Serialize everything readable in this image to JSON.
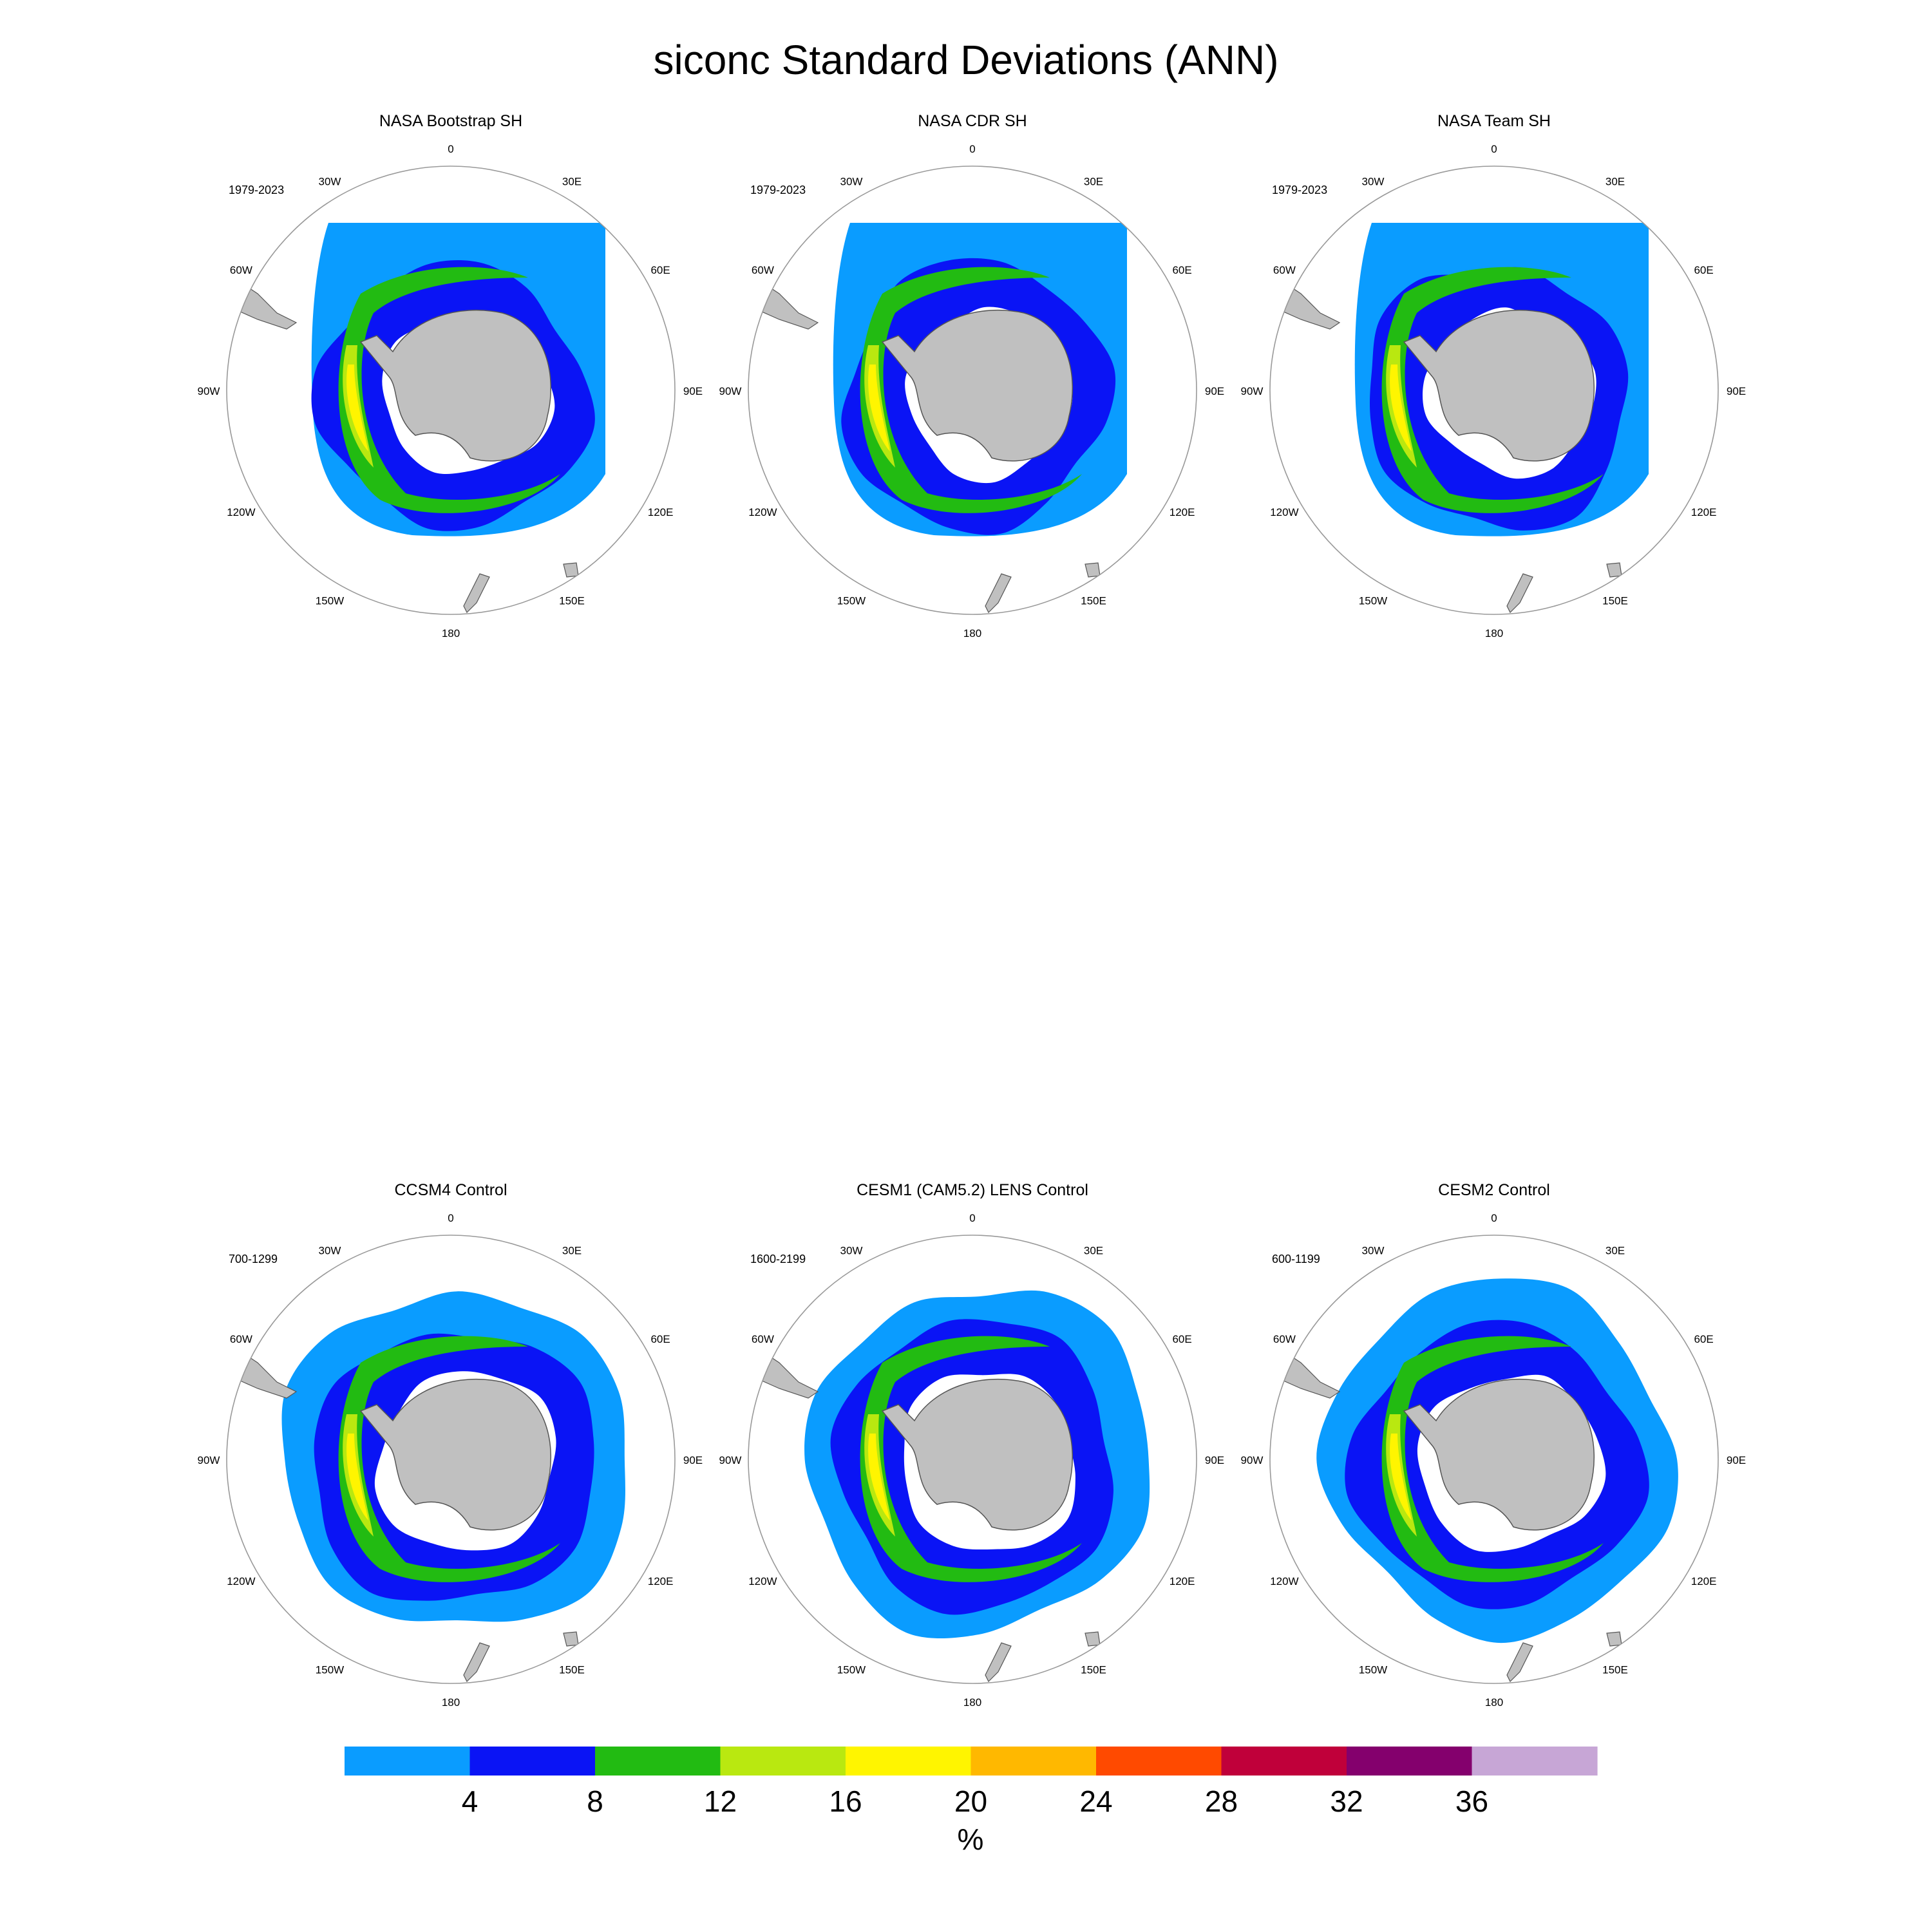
{
  "title": "siconc Standard Deviations (ANN)",
  "panels": [
    {
      "name": "NASA Bootstrap SH",
      "years": "1979-2023",
      "kind": "obs"
    },
    {
      "name": "NASA CDR SH",
      "years": "1979-2023",
      "kind": "obs"
    },
    {
      "name": "NASA Team SH",
      "years": "1979-2023",
      "kind": "obs"
    },
    {
      "name": "CCSM4 Control",
      "years": "700-1299",
      "kind": "model"
    },
    {
      "name": "CESM1 (CAM5.2) LENS Control",
      "years": "1600-2199",
      "kind": "model"
    },
    {
      "name": "CESM2 Control",
      "years": "600-1199",
      "kind": "model"
    }
  ],
  "longitude_labels": [
    "0",
    "30E",
    "60E",
    "90E",
    "120E",
    "150E",
    "180",
    "150W",
    "120W",
    "90W",
    "60W",
    "30W"
  ],
  "colorbar": {
    "unit": "%",
    "ticks": [
      "4",
      "8",
      "12",
      "16",
      "20",
      "24",
      "28",
      "32",
      "36"
    ],
    "colors": [
      "#0a9cff",
      "#0a14f5",
      "#22bb12",
      "#b9e810",
      "#fff500",
      "#ffb800",
      "#ff4a00",
      "#c0003a",
      "#84006d",
      "#c7a6d6"
    ]
  },
  "colors": {
    "land": "#c0c0c0",
    "coastline": "#555555",
    "circle": "#999999"
  }
}
